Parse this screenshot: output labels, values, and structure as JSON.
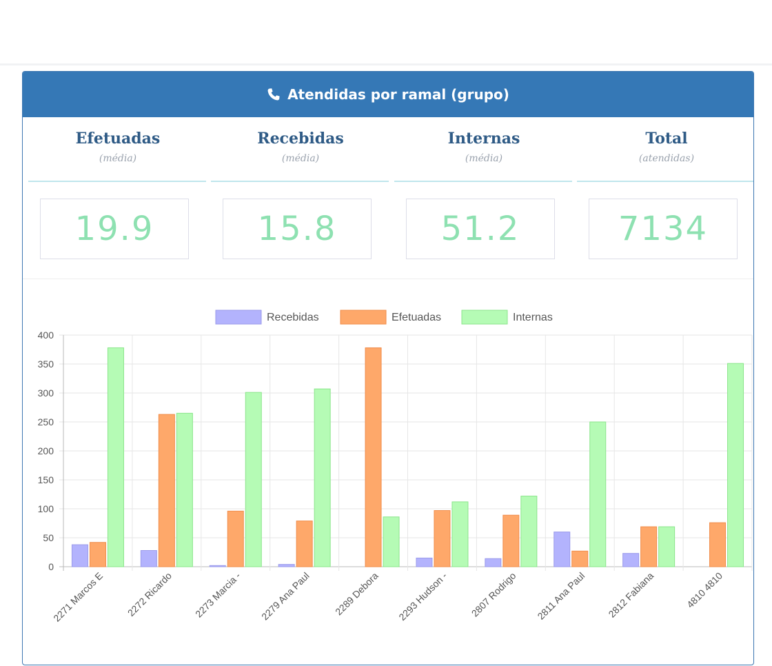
{
  "panel": {
    "title": "Atendidas por ramal (grupo)",
    "icon": "phone-icon"
  },
  "stats": [
    {
      "label": "Efetuadas",
      "sub": "(média)",
      "value": "19.9"
    },
    {
      "label": "Recebidas",
      "sub": "(média)",
      "value": "15.8"
    },
    {
      "label": "Internas",
      "sub": "(média)",
      "value": "51.2"
    },
    {
      "label": "Total",
      "sub": "(atendidas)",
      "value": "7134"
    }
  ],
  "colors": {
    "header_bg": "#3578b6",
    "stat_value": "#8ee1b1",
    "stat_title": "#2f5b86",
    "recebidas": "#b3b3fd",
    "efetuadas": "#fea86a",
    "internas": "#b5fbb5"
  },
  "chart_data": {
    "type": "bar",
    "categories": [
      "2271 Marcos E",
      "2272 Ricardo",
      "2273 Marcia -",
      "2279 Ana Paul",
      "2289 Debora",
      "2293 Hudson -",
      "2807 Rodrigo",
      "2811 Ana Paul",
      "2812 Fabiana",
      "4810 4810"
    ],
    "series": [
      {
        "name": "Recebidas",
        "values": [
          38,
          28,
          2,
          4,
          0,
          15,
          14,
          60,
          23,
          0
        ]
      },
      {
        "name": "Efetuadas",
        "values": [
          42,
          263,
          96,
          79,
          378,
          97,
          89,
          27,
          69,
          76
        ]
      },
      {
        "name": "Internas",
        "values": [
          378,
          265,
          301,
          307,
          86,
          112,
          122,
          250,
          69,
          351
        ]
      }
    ],
    "ylim": [
      0,
      400
    ],
    "yticks": [
      0,
      50,
      100,
      150,
      200,
      250,
      300,
      350,
      400
    ],
    "legend": "top-center",
    "grid": true
  }
}
